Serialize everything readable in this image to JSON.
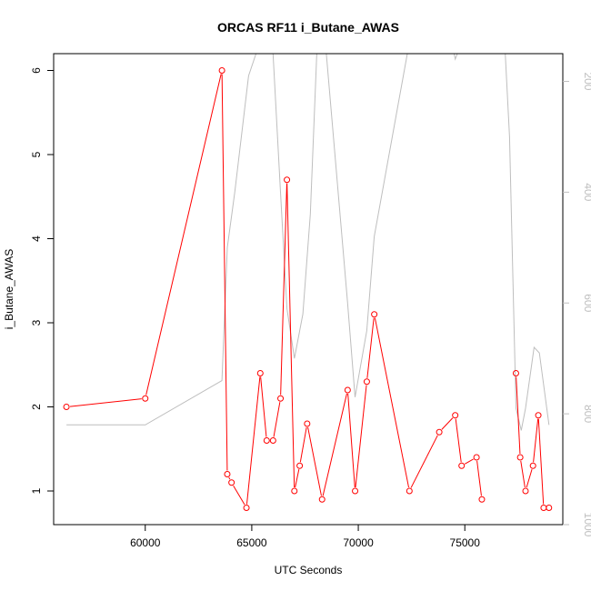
{
  "chart_data": {
    "type": "line",
    "title": "ORCAS RF11 i_Butane_AWAS",
    "xlabel": "UTC Seconds",
    "ylabel": "i_Butane_AWAS",
    "xlim": [
      55700,
      79600
    ],
    "ylim": [
      0.6,
      6.2
    ],
    "x_ticks": [
      60000,
      65000,
      70000,
      75000
    ],
    "y_ticks": [
      1,
      2,
      3,
      4,
      5,
      6
    ],
    "x_tick_labels": [
      "60000",
      "65000",
      "70000",
      "75000"
    ],
    "y_tick_labels": [
      "1",
      "2",
      "3",
      "4",
      "5",
      "6"
    ],
    "secondary_axis": {
      "side": "right",
      "reversed": true,
      "ylim": [
        1000,
        150
      ],
      "ticks": [
        200,
        400,
        600,
        800,
        1000
      ],
      "tick_labels": [
        "200",
        "400",
        "600",
        "800",
        "1000"
      ],
      "color": "#bebebe"
    },
    "series": [
      {
        "color": "#ff0000",
        "marker": "open-circle",
        "axis": "left",
        "points": [
          [
            56300,
            2.0
          ],
          [
            60000,
            2.1
          ],
          [
            63600,
            6.0
          ],
          [
            63850,
            1.2
          ],
          [
            64050,
            1.1
          ],
          [
            64750,
            0.8
          ],
          [
            65400,
            2.4
          ],
          [
            65700,
            1.6
          ],
          [
            66000,
            1.6
          ],
          [
            66350,
            2.1
          ],
          [
            66650,
            4.7
          ],
          [
            67000,
            1.0
          ],
          [
            67250,
            1.3
          ],
          [
            67600,
            1.8
          ],
          [
            68300,
            0.9
          ],
          [
            69500,
            2.2
          ],
          [
            69850,
            1.0
          ],
          [
            70400,
            2.3
          ],
          [
            70750,
            3.1
          ],
          [
            72400,
            1.0
          ],
          [
            73800,
            1.7
          ],
          [
            74550,
            1.9
          ],
          [
            74850,
            1.3
          ],
          [
            75550,
            1.4
          ],
          [
            75800,
            0.9
          ],
          [
            77400,
            2.4
          ],
          [
            77600,
            1.4
          ],
          [
            77850,
            1.0
          ],
          [
            78200,
            1.3
          ],
          [
            78450,
            1.9
          ],
          [
            78700,
            0.8
          ],
          [
            78950,
            0.8
          ]
        ],
        "segments": [
          [
            0,
            24
          ],
          [
            25,
            31
          ]
        ]
      },
      {
        "color": "#bebebe",
        "marker": "none",
        "axis": "right",
        "points": [
          [
            56300,
            820
          ],
          [
            60000,
            820
          ],
          [
            63600,
            740
          ],
          [
            63850,
            500
          ],
          [
            64200,
            400
          ],
          [
            64850,
            190
          ],
          [
            65200,
            150
          ],
          [
            66000,
            150
          ],
          [
            66350,
            400
          ],
          [
            66650,
            610
          ],
          [
            67000,
            700
          ],
          [
            67400,
            620
          ],
          [
            67750,
            440
          ],
          [
            68050,
            150
          ],
          [
            68500,
            150
          ],
          [
            69500,
            600
          ],
          [
            69850,
            770
          ],
          [
            70400,
            650
          ],
          [
            70750,
            480
          ],
          [
            72300,
            150
          ],
          [
            74500,
            150
          ],
          [
            74550,
            160
          ],
          [
            74650,
            150
          ],
          [
            76900,
            150
          ],
          [
            77100,
            300
          ],
          [
            77400,
            790
          ],
          [
            77650,
            830
          ],
          [
            77850,
            790
          ],
          [
            78250,
            680
          ],
          [
            78500,
            690
          ],
          [
            78950,
            820
          ]
        ]
      }
    ],
    "grid": false,
    "legend": "none"
  }
}
